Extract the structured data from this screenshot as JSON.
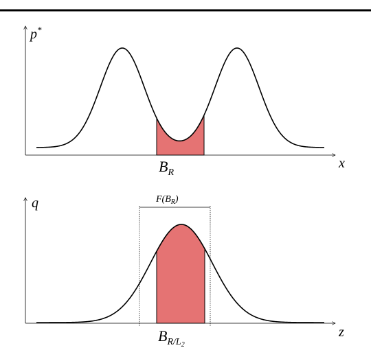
{
  "top": {
    "y_label": {
      "base": "p",
      "sup": "*"
    },
    "x_label": "x",
    "region_label": {
      "base": "B",
      "sub": "R"
    }
  },
  "bottom": {
    "y_label": "q",
    "x_label": "z",
    "bracket_label": "F(B",
    "bracket_label_sub": "R",
    "bracket_label_end": ")",
    "region_label": {
      "base": "B",
      "sub": "R/L",
      "subsub": "2"
    }
  }
}
